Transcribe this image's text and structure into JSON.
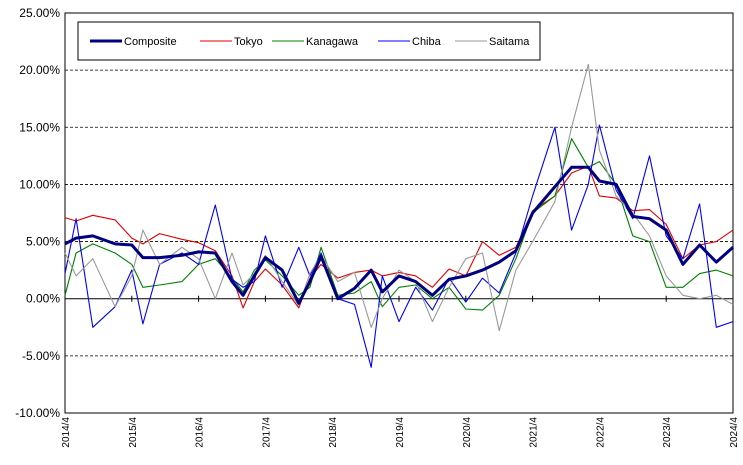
{
  "chart_data": {
    "type": "line",
    "title": "",
    "xlabel": "",
    "ylabel": "",
    "ylim": [
      -10,
      25
    ],
    "y_unit": "%",
    "y_ticks": [
      25,
      20,
      15,
      10,
      5,
      0,
      -5,
      -10
    ],
    "y_tick_labels": [
      "25.00%",
      "20.00%",
      "15.00%",
      "10.00%",
      "5.00%",
      "0.00%",
      "-5.00%",
      "-10.00%"
    ],
    "grid": "horizontal dashed",
    "legend": "top-left",
    "x_start": "2014/4",
    "x_end": "2024/4",
    "x_tick_labels": [
      "2014/4",
      "2015/4",
      "2016/4",
      "2017/4",
      "2018/4",
      "2019/4",
      "2020/4",
      "2021/4",
      "2022/4",
      "2023/4",
      "2024/4"
    ],
    "x_period": "monthly",
    "series": [
      {
        "name": "Composite",
        "color": "#000080",
        "points": [
          [
            "2014/4",
            4.8
          ],
          [
            "2014/6",
            5.3
          ],
          [
            "2014/9",
            5.5
          ],
          [
            "2015/1",
            4.8
          ],
          [
            "2015/4",
            4.7
          ],
          [
            "2015/6",
            3.6
          ],
          [
            "2015/9",
            3.6
          ],
          [
            "2016/1",
            3.8
          ],
          [
            "2016/4",
            4.1
          ],
          [
            "2016/7",
            4.0
          ],
          [
            "2016/10",
            1.5
          ],
          [
            "2016/12",
            0.3
          ],
          [
            "2017/2",
            2.0
          ],
          [
            "2017/4",
            3.6
          ],
          [
            "2017/7",
            2.5
          ],
          [
            "2017/10",
            -0.4
          ],
          [
            "2017/12",
            1.5
          ],
          [
            "2018/2",
            3.7
          ],
          [
            "2018/5",
            0.0
          ],
          [
            "2018/8",
            0.9
          ],
          [
            "2018/11",
            2.5
          ],
          [
            "2019/1",
            0.6
          ],
          [
            "2019/4",
            2.0
          ],
          [
            "2019/7",
            1.5
          ],
          [
            "2019/10",
            0.3
          ],
          [
            "2020/1",
            1.7
          ],
          [
            "2020/4",
            2.0
          ],
          [
            "2020/7",
            2.5
          ],
          [
            "2020/10",
            3.2
          ],
          [
            "2021/1",
            4.2
          ],
          [
            "2021/4",
            7.5
          ],
          [
            "2021/8",
            9.8
          ],
          [
            "2021/11",
            11.5
          ],
          [
            "2022/2",
            11.5
          ],
          [
            "2022/4",
            10.3
          ],
          [
            "2022/7",
            10.0
          ],
          [
            "2022/10",
            7.2
          ],
          [
            "2023/1",
            7.0
          ],
          [
            "2023/4",
            6.0
          ],
          [
            "2023/7",
            3.0
          ],
          [
            "2023/10",
            4.7
          ],
          [
            "2024/1",
            3.2
          ],
          [
            "2024/4",
            4.5
          ]
        ]
      },
      {
        "name": "Tokyo",
        "color": "#e00000",
        "points": [
          [
            "2014/4",
            7.1
          ],
          [
            "2014/6",
            6.8
          ],
          [
            "2014/9",
            7.3
          ],
          [
            "2015/1",
            6.9
          ],
          [
            "2015/4",
            5.3
          ],
          [
            "2015/6",
            4.8
          ],
          [
            "2015/9",
            5.7
          ],
          [
            "2016/1",
            5.2
          ],
          [
            "2016/4",
            4.9
          ],
          [
            "2016/7",
            4.2
          ],
          [
            "2016/10",
            2.0
          ],
          [
            "2016/12",
            -0.8
          ],
          [
            "2017/2",
            1.5
          ],
          [
            "2017/4",
            2.6
          ],
          [
            "2017/7",
            1.2
          ],
          [
            "2017/10",
            -0.8
          ],
          [
            "2017/12",
            1.8
          ],
          [
            "2018/2",
            3.0
          ],
          [
            "2018/5",
            1.8
          ],
          [
            "2018/8",
            2.3
          ],
          [
            "2018/11",
            2.5
          ],
          [
            "2019/1",
            2.0
          ],
          [
            "2019/4",
            2.3
          ],
          [
            "2019/7",
            2.0
          ],
          [
            "2019/10",
            1.0
          ],
          [
            "2020/1",
            2.6
          ],
          [
            "2020/4",
            2.0
          ],
          [
            "2020/7",
            5.0
          ],
          [
            "2020/10",
            3.8
          ],
          [
            "2021/1",
            4.5
          ],
          [
            "2021/4",
            7.7
          ],
          [
            "2021/8",
            9.0
          ],
          [
            "2021/11",
            11.0
          ],
          [
            "2022/2",
            11.6
          ],
          [
            "2022/4",
            9.0
          ],
          [
            "2022/7",
            8.8
          ],
          [
            "2022/10",
            7.7
          ],
          [
            "2023/1",
            7.8
          ],
          [
            "2023/4",
            6.5
          ],
          [
            "2023/7",
            3.5
          ],
          [
            "2023/10",
            4.7
          ],
          [
            "2024/1",
            5.0
          ],
          [
            "2024/4",
            6.0
          ]
        ]
      },
      {
        "name": "Kanagawa",
        "color": "#008000",
        "points": [
          [
            "2014/4",
            0.3
          ],
          [
            "2014/6",
            4.0
          ],
          [
            "2014/9",
            4.8
          ],
          [
            "2015/1",
            4.0
          ],
          [
            "2015/4",
            3.0
          ],
          [
            "2015/6",
            1.0
          ],
          [
            "2015/9",
            1.2
          ],
          [
            "2016/1",
            1.5
          ],
          [
            "2016/4",
            3.0
          ],
          [
            "2016/7",
            3.5
          ],
          [
            "2016/10",
            1.8
          ],
          [
            "2016/12",
            0.6
          ],
          [
            "2017/2",
            2.5
          ],
          [
            "2017/4",
            3.4
          ],
          [
            "2017/7",
            2.0
          ],
          [
            "2017/10",
            0.3
          ],
          [
            "2017/12",
            1.0
          ],
          [
            "2018/2",
            4.5
          ],
          [
            "2018/5",
            0.3
          ],
          [
            "2018/8",
            0.5
          ],
          [
            "2018/11",
            1.5
          ],
          [
            "2019/1",
            -0.7
          ],
          [
            "2019/4",
            1.0
          ],
          [
            "2019/7",
            1.2
          ],
          [
            "2019/10",
            0.0
          ],
          [
            "2020/1",
            1.0
          ],
          [
            "2020/4",
            -0.9
          ],
          [
            "2020/7",
            -1.0
          ],
          [
            "2020/10",
            0.3
          ],
          [
            "2021/1",
            3.5
          ],
          [
            "2021/4",
            7.5
          ],
          [
            "2021/8",
            9.0
          ],
          [
            "2021/11",
            14.0
          ],
          [
            "2022/2",
            11.5
          ],
          [
            "2022/4",
            12.0
          ],
          [
            "2022/7",
            10.0
          ],
          [
            "2022/10",
            5.5
          ],
          [
            "2023/1",
            5.0
          ],
          [
            "2023/4",
            1.0
          ],
          [
            "2023/7",
            1.0
          ],
          [
            "2023/10",
            2.2
          ],
          [
            "2024/1",
            2.5
          ],
          [
            "2024/4",
            2.0
          ]
        ]
      },
      {
        "name": "Chiba",
        "color": "#0000ff",
        "points": [
          [
            "2014/4",
            2.2
          ],
          [
            "2014/6",
            7.0
          ],
          [
            "2014/9",
            -2.5
          ],
          [
            "2015/1",
            -0.7
          ],
          [
            "2015/4",
            2.5
          ],
          [
            "2015/6",
            -2.2
          ],
          [
            "2015/9",
            3.0
          ],
          [
            "2016/1",
            4.0
          ],
          [
            "2016/4",
            3.0
          ],
          [
            "2016/7",
            8.2
          ],
          [
            "2016/10",
            1.7
          ],
          [
            "2016/12",
            1.0
          ],
          [
            "2017/2",
            1.5
          ],
          [
            "2017/4",
            5.5
          ],
          [
            "2017/7",
            1.0
          ],
          [
            "2017/10",
            4.5
          ],
          [
            "2017/12",
            2.0
          ],
          [
            "2018/2",
            4.0
          ],
          [
            "2018/5",
            0.0
          ],
          [
            "2018/8",
            -0.5
          ],
          [
            "2018/11",
            -6.0
          ],
          [
            "2019/1",
            2.0
          ],
          [
            "2019/4",
            -2.0
          ],
          [
            "2019/7",
            1.0
          ],
          [
            "2019/10",
            -1.0
          ],
          [
            "2020/1",
            1.8
          ],
          [
            "2020/4",
            -0.3
          ],
          [
            "2020/7",
            1.8
          ],
          [
            "2020/10",
            0.5
          ],
          [
            "2021/1",
            4.0
          ],
          [
            "2021/4",
            9.0
          ],
          [
            "2021/8",
            15.0
          ],
          [
            "2021/11",
            6.0
          ],
          [
            "2022/2",
            10.0
          ],
          [
            "2022/4",
            15.2
          ],
          [
            "2022/7",
            9.5
          ],
          [
            "2022/10",
            7.0
          ],
          [
            "2023/1",
            12.5
          ],
          [
            "2023/4",
            5.5
          ],
          [
            "2023/7",
            3.5
          ],
          [
            "2023/10",
            8.3
          ],
          [
            "2024/1",
            -2.5
          ],
          [
            "2024/4",
            -2.0
          ]
        ]
      },
      {
        "name": "Saitama",
        "color": "#999999",
        "points": [
          [
            "2014/4",
            4.0
          ],
          [
            "2014/6",
            2.0
          ],
          [
            "2014/9",
            3.5
          ],
          [
            "2015/1",
            -0.7
          ],
          [
            "2015/4",
            2.0
          ],
          [
            "2015/6",
            6.0
          ],
          [
            "2015/9",
            3.0
          ],
          [
            "2016/1",
            4.5
          ],
          [
            "2016/4",
            3.5
          ],
          [
            "2016/7",
            0.0
          ],
          [
            "2016/10",
            4.0
          ],
          [
            "2016/12",
            1.2
          ],
          [
            "2017/2",
            2.2
          ],
          [
            "2017/4",
            3.8
          ],
          [
            "2017/7",
            1.5
          ],
          [
            "2017/10",
            -0.6
          ],
          [
            "2017/12",
            2.2
          ],
          [
            "2018/2",
            3.8
          ],
          [
            "2018/5",
            1.5
          ],
          [
            "2018/8",
            2.3
          ],
          [
            "2018/11",
            -2.5
          ],
          [
            "2019/1",
            0.0
          ],
          [
            "2019/4",
            2.5
          ],
          [
            "2019/7",
            1.5
          ],
          [
            "2019/10",
            -2.0
          ],
          [
            "2020/1",
            1.0
          ],
          [
            "2020/4",
            3.5
          ],
          [
            "2020/7",
            4.0
          ],
          [
            "2020/10",
            -2.8
          ],
          [
            "2021/1",
            2.5
          ],
          [
            "2021/4",
            5.0
          ],
          [
            "2021/8",
            8.5
          ],
          [
            "2021/11",
            15.0
          ],
          [
            "2022/2",
            20.5
          ],
          [
            "2022/4",
            13.0
          ],
          [
            "2022/7",
            9.0
          ],
          [
            "2022/10",
            7.5
          ],
          [
            "2023/1",
            5.5
          ],
          [
            "2023/4",
            2.0
          ],
          [
            "2023/7",
            0.3
          ],
          [
            "2023/10",
            0.0
          ],
          [
            "2024/1",
            0.3
          ],
          [
            "2024/4",
            -0.5
          ]
        ]
      }
    ]
  }
}
